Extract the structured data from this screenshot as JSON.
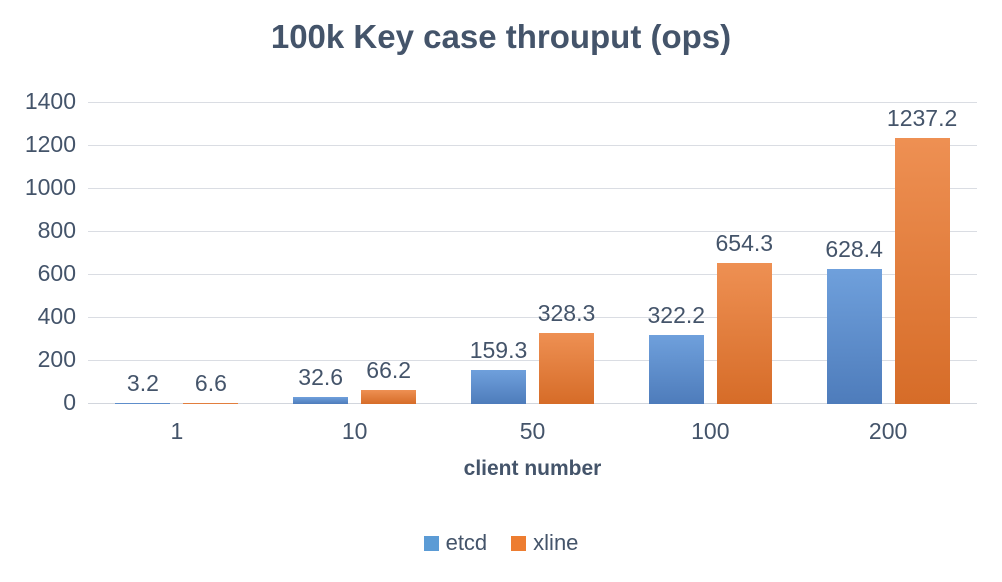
{
  "title": "100k Key case throuput (ops)",
  "colors": {
    "etcd": "#5b9bd5",
    "xline": "#ed7d31",
    "text": "#44546a",
    "gridline": "#dadde3"
  },
  "chart_data": {
    "type": "bar",
    "title": "100k Key case throuput (ops)",
    "categories": [
      "1",
      "10",
      "50",
      "100",
      "200"
    ],
    "series": [
      {
        "name": "etcd",
        "color": "#5b9bd5",
        "values": [
          3.2,
          32.6,
          159.3,
          322.2,
          628.4
        ]
      },
      {
        "name": "xline",
        "color": "#ed7d31",
        "values": [
          6.6,
          66.2,
          328.3,
          654.3,
          1237.2
        ]
      }
    ],
    "xlabel": "client number",
    "ylabel": "",
    "ylim": [
      0,
      1400
    ],
    "ytick_step": 200,
    "grid": true,
    "legend_position": "bottom",
    "data_labels": true
  }
}
